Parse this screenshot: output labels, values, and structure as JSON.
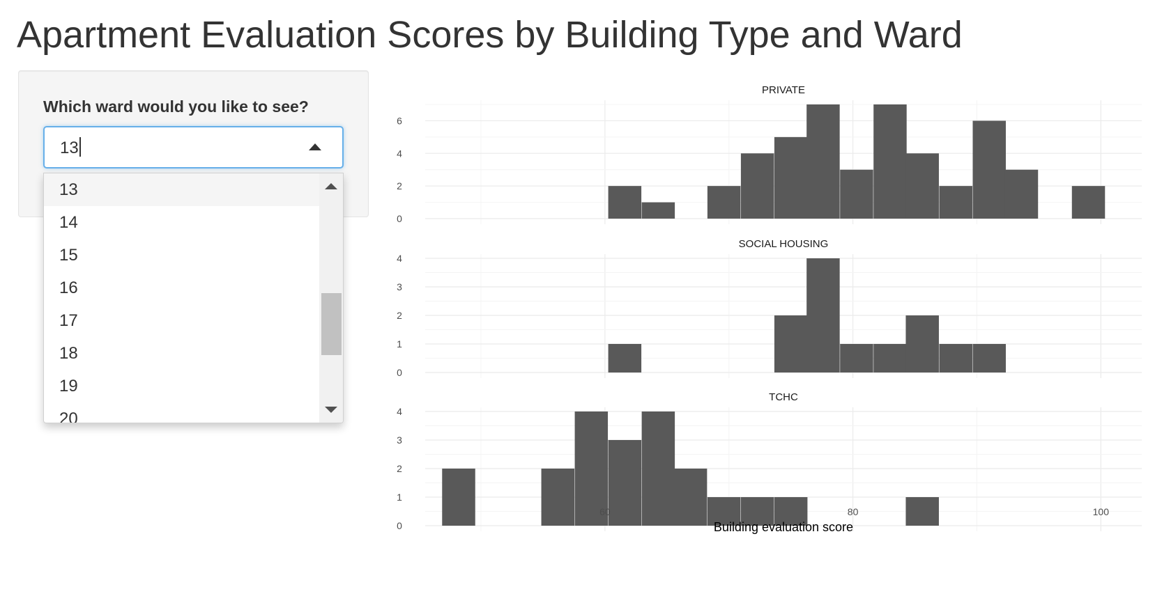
{
  "title": "Apartment Evaluation Scores by Building Type and Ward",
  "sidebar": {
    "label": "Which ward would you like to see?",
    "selected": "13",
    "options": [
      "13",
      "14",
      "15",
      "16",
      "17",
      "18",
      "19",
      "20"
    ],
    "active_option": "13"
  },
  "chart_data": {
    "type": "bar",
    "xlabel": "Building evaluation score",
    "ylabel": "",
    "xlim": [
      45.5,
      103.3
    ],
    "x_ticks": [
      60,
      80,
      100
    ],
    "bin_width": 2.67,
    "bar_color": "#595959",
    "grid": true,
    "panels": [
      {
        "name": "PRIVATE",
        "ylim": [
          0,
          7
        ],
        "y_ticks": [
          0,
          2,
          4,
          6
        ],
        "bars": [
          {
            "x": 61.6,
            "count": 2
          },
          {
            "x": 64.3,
            "count": 1
          },
          {
            "x": 69.6,
            "count": 2
          },
          {
            "x": 72.3,
            "count": 4
          },
          {
            "x": 75.0,
            "count": 5
          },
          {
            "x": 77.6,
            "count": 7
          },
          {
            "x": 80.3,
            "count": 3
          },
          {
            "x": 83.0,
            "count": 7
          },
          {
            "x": 85.6,
            "count": 4
          },
          {
            "x": 88.3,
            "count": 2
          },
          {
            "x": 91.0,
            "count": 6
          },
          {
            "x": 93.6,
            "count": 3
          },
          {
            "x": 99.0,
            "count": 2
          }
        ]
      },
      {
        "name": "SOCIAL HOUSING",
        "ylim": [
          0,
          4
        ],
        "y_ticks": [
          0,
          1,
          2,
          3,
          4
        ],
        "bars": [
          {
            "x": 61.6,
            "count": 1
          },
          {
            "x": 75.0,
            "count": 2
          },
          {
            "x": 77.6,
            "count": 4
          },
          {
            "x": 80.3,
            "count": 1
          },
          {
            "x": 83.0,
            "count": 1
          },
          {
            "x": 85.6,
            "count": 2
          },
          {
            "x": 88.3,
            "count": 1
          },
          {
            "x": 91.0,
            "count": 1
          }
        ]
      },
      {
        "name": "TCHC",
        "ylim": [
          0,
          4
        ],
        "y_ticks": [
          0,
          1,
          2,
          3,
          4
        ],
        "bars": [
          {
            "x": 48.2,
            "count": 2
          },
          {
            "x": 56.2,
            "count": 2
          },
          {
            "x": 58.9,
            "count": 4
          },
          {
            "x": 61.6,
            "count": 3
          },
          {
            "x": 64.3,
            "count": 4
          },
          {
            "x": 66.9,
            "count": 2
          },
          {
            "x": 69.6,
            "count": 1
          },
          {
            "x": 72.3,
            "count": 1
          },
          {
            "x": 75.0,
            "count": 1
          },
          {
            "x": 85.6,
            "count": 1
          }
        ]
      }
    ]
  }
}
